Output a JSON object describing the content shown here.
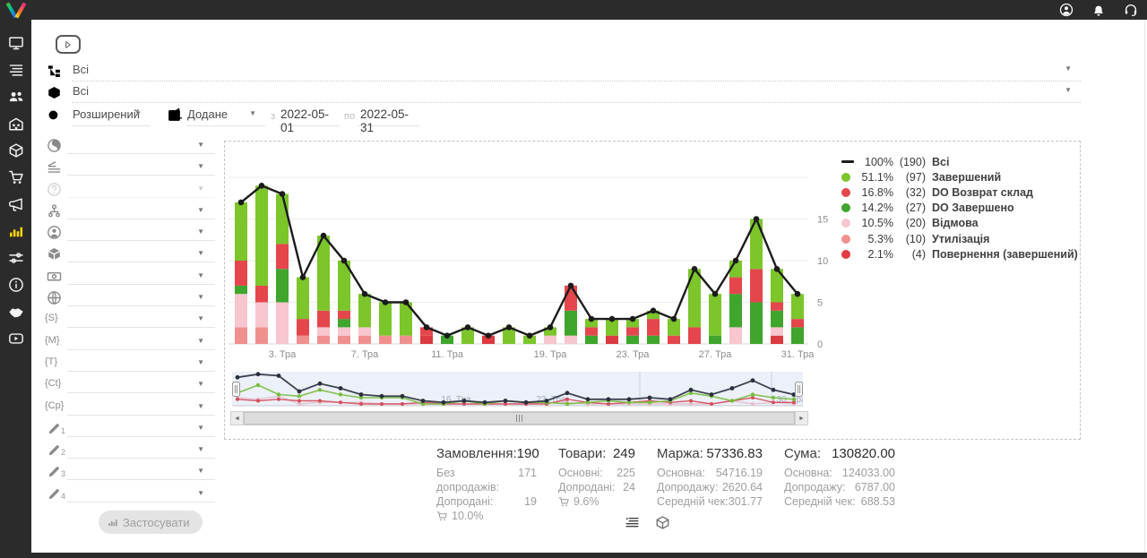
{
  "topbar": {
    "icons": [
      {
        "name": "user-circle"
      },
      {
        "name": "bell"
      },
      {
        "name": "headset"
      }
    ]
  },
  "sidebar": {
    "items": [
      {
        "icon": "monitor"
      },
      {
        "icon": "list"
      },
      {
        "icon": "people"
      },
      {
        "icon": "warehouse"
      },
      {
        "icon": "package"
      },
      {
        "icon": "trolley"
      },
      {
        "icon": "megaphone"
      },
      {
        "icon": "bar-chart",
        "active": true
      },
      {
        "icon": "sliders"
      },
      {
        "icon": "info-circle"
      },
      {
        "icon": "handshake"
      },
      {
        "icon": "video"
      }
    ]
  },
  "filters": {
    "category_value": "Всі",
    "product_value": "Всі",
    "search_mode": "Розширений",
    "date_field": "Додане",
    "from_label": "з",
    "date_from": "2022-05-01",
    "to_label": "по",
    "date_to": "2022-05-31",
    "apply_label": "Застосувати",
    "rows": [
      {
        "icon": "globe-swirl"
      },
      {
        "icon": "layers"
      },
      {
        "icon": "question-circle",
        "disabled": true
      },
      {
        "icon": "org-tree"
      },
      {
        "icon": "person-circle"
      },
      {
        "icon": "cube"
      },
      {
        "icon": "banknote"
      },
      {
        "icon": "globe"
      },
      {
        "icon": "brace",
        "text": "{S}"
      },
      {
        "icon": "brace",
        "text": "{M}"
      },
      {
        "icon": "brace",
        "text": "{T}"
      },
      {
        "icon": "brace",
        "text": "{Ct}"
      },
      {
        "icon": "brace",
        "text": "{Cp}"
      },
      {
        "icon": "pencil",
        "num": "1"
      },
      {
        "icon": "pencil",
        "num": "2"
      },
      {
        "icon": "pencil",
        "num": "3"
      },
      {
        "icon": "pencil",
        "num": "4"
      }
    ]
  },
  "chart_data": {
    "type": "bar",
    "stacked": true,
    "grid": true,
    "ylim": [
      0,
      20
    ],
    "yticks": [
      0,
      5,
      10,
      15
    ],
    "x_ticks": [
      {
        "index": 2,
        "label": "3. Тра"
      },
      {
        "index": 6,
        "label": "7. Тра"
      },
      {
        "index": 10,
        "label": "11. Тра"
      },
      {
        "index": 15,
        "label": "19. Тра"
      },
      {
        "index": 19,
        "label": "23. Тра"
      },
      {
        "index": 23,
        "label": "27. Тра"
      },
      {
        "index": 27,
        "label": "31. Тра"
      }
    ],
    "line_series": {
      "name": "Всі",
      "color": "#1b1b1b",
      "values": [
        17,
        19,
        18,
        8,
        13,
        10,
        6,
        5,
        5,
        2,
        1,
        2,
        1,
        2,
        1,
        2,
        7,
        3,
        3,
        3,
        4,
        3,
        9,
        6,
        10,
        15,
        9,
        6
      ]
    },
    "series_bottom_to_top": [
      {
        "name": "Повернення (завершений)",
        "color": "#db3a40",
        "values": [
          0,
          0,
          0,
          0,
          0,
          0,
          0,
          0,
          0,
          1,
          0,
          0,
          1,
          0,
          0,
          0,
          0,
          0,
          1,
          0,
          0,
          0,
          0,
          0,
          0,
          0,
          1,
          0
        ]
      },
      {
        "name": "Утилізація",
        "color": "#f0908e",
        "values": [
          2,
          2,
          0,
          1,
          1,
          1,
          1,
          1,
          1,
          0,
          0,
          0,
          0,
          0,
          0,
          0,
          0,
          0,
          0,
          0,
          0,
          0,
          0,
          0,
          0,
          0,
          0,
          0
        ]
      },
      {
        "name": "Відмова",
        "color": "#f7c6ce",
        "values": [
          4,
          3,
          5,
          0,
          1,
          1,
          1,
          0,
          0,
          0,
          0,
          0,
          0,
          0,
          0,
          1,
          1,
          0,
          0,
          0,
          0,
          0,
          0,
          0,
          2,
          0,
          1,
          0
        ]
      },
      {
        "name": "DO Завершено",
        "color": "#3fa52c",
        "values": [
          1,
          0,
          4,
          0,
          0,
          1,
          0,
          0,
          0,
          0,
          1,
          0,
          0,
          0,
          0,
          0,
          3,
          1,
          0,
          1,
          1,
          0,
          0,
          1,
          4,
          5,
          2,
          2
        ]
      },
      {
        "name": "DO Возврат склад",
        "color": "#e4464c",
        "values": [
          3,
          2,
          3,
          2,
          2,
          1,
          0,
          0,
          0,
          1,
          0,
          0,
          0,
          0,
          0,
          0,
          3,
          1,
          0,
          1,
          2,
          1,
          2,
          0,
          2,
          4,
          1,
          1
        ]
      },
      {
        "name": "Завершений",
        "color": "#7cc52b",
        "values": [
          7,
          12,
          6,
          5,
          9,
          6,
          4,
          4,
          4,
          0,
          0,
          2,
          0,
          2,
          1,
          1,
          0,
          1,
          2,
          1,
          1,
          2,
          7,
          5,
          2,
          6,
          4,
          3
        ]
      }
    ],
    "legend": [
      {
        "percent": "100%",
        "count": 190,
        "label": "Всі",
        "color": "#1b1b1b",
        "marker": "line"
      },
      {
        "percent": "51.1%",
        "count": 97,
        "label": "Завершений",
        "color": "#7cc52b",
        "marker": "dot"
      },
      {
        "percent": "16.8%",
        "count": 32,
        "label": "DO Возврат склад",
        "color": "#e4464c",
        "marker": "dot"
      },
      {
        "percent": "14.2%",
        "count": 27,
        "label": "DO Завершено",
        "color": "#3fa52c",
        "marker": "dot"
      },
      {
        "percent": "10.5%",
        "count": 20,
        "label": "Відмова",
        "color": "#f7c6ce",
        "marker": "dot"
      },
      {
        "percent": "5.3%",
        "count": 10,
        "label": "Утилізація",
        "color": "#f0908e",
        "marker": "dot"
      },
      {
        "percent": "2.1%",
        "count": 4,
        "label": "Повернення (завершений)",
        "color": "#e23b41",
        "marker": "dot"
      }
    ],
    "navigator": {
      "labels": [
        {
          "x": 250,
          "label": "16. Тра"
        },
        {
          "x": 356,
          "label": "23. Тра"
        },
        {
          "x": 624,
          "label": "30. Тра"
        }
      ]
    }
  },
  "stats": {
    "columns": [
      {
        "title": "Замовлення:",
        "value": "190",
        "rows": [
          {
            "label": "Без допродажів:",
            "value": "171"
          },
          {
            "label": "Допродані:",
            "value": "19"
          }
        ],
        "cart_percent": "10.0%"
      },
      {
        "title": "Товари:",
        "value": "249",
        "rows": [
          {
            "label": "Основні:",
            "value": "225"
          },
          {
            "label": "Допродані:",
            "value": "24"
          }
        ],
        "cart_percent": "9.6%"
      },
      {
        "title": "Маржа:",
        "value": "57336.83",
        "rows": [
          {
            "label": "Основна:",
            "value": "54716.19"
          },
          {
            "label": "Допродажу:",
            "value": "2620.64"
          },
          {
            "label": "Середній чек:",
            "value": "301.77"
          }
        ]
      },
      {
        "title": "Сума:",
        "value": "130820.00",
        "rows": [
          {
            "label": "Основна:",
            "value": "124033.00"
          },
          {
            "label": "Допродажу:",
            "value": "6787.00"
          },
          {
            "label": "Середній чек:",
            "value": "688.53"
          }
        ]
      }
    ]
  },
  "view_toggles": [
    {
      "icon": "list-toggle"
    },
    {
      "icon": "package"
    }
  ],
  "colors": {
    "topbar_bg": "#2b2b2b",
    "active_icon": "#ffd600",
    "selection_overlay": "rgba(101,131,195,0.12)"
  }
}
